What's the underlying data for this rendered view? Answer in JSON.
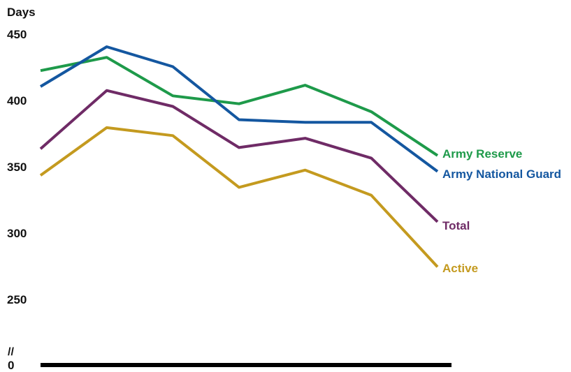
{
  "chart_data": {
    "type": "line",
    "title": "",
    "ylabel": "Days",
    "xlabel": "",
    "x": [
      1,
      2,
      3,
      4,
      5,
      6,
      7
    ],
    "ylim": [
      250,
      450
    ],
    "y_ticks": [
      "450",
      "400",
      "350",
      "300",
      "250"
    ],
    "zero_tick": "0",
    "axis_break": "//",
    "grid": false,
    "legend": "direct labels at line ends",
    "series": [
      {
        "name": "Army Reserve",
        "color": "#1e9a4a",
        "values": [
          422,
          432,
          403,
          397,
          411,
          391,
          358
        ]
      },
      {
        "name": "Army National Guard",
        "color": "#1457a0",
        "values": [
          410,
          440,
          425,
          385,
          383,
          383,
          346
        ]
      },
      {
        "name": "Total",
        "color": "#6f2b66",
        "values": [
          363,
          407,
          395,
          364,
          371,
          356,
          308
        ]
      },
      {
        "name": "Active",
        "color": "#c49a1f",
        "values": [
          343,
          379,
          373,
          334,
          347,
          328,
          274
        ]
      }
    ]
  }
}
